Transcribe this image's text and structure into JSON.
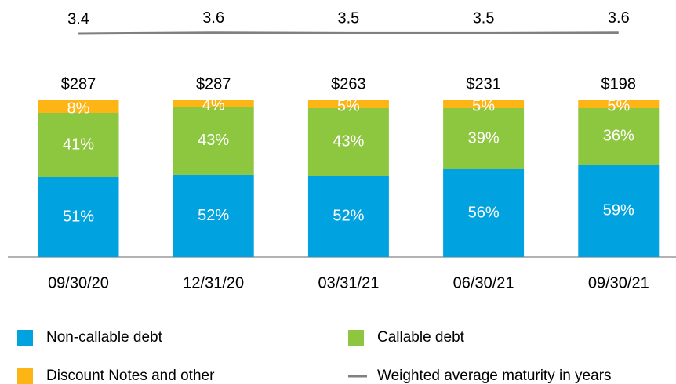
{
  "chart_data": {
    "type": "stacked_bar",
    "categories": [
      "09/30/20",
      "12/31/20",
      "03/31/21",
      "06/30/21",
      "09/30/21"
    ],
    "series": [
      {
        "name": "Non-callable debt",
        "color": "#00a3e0",
        "values": [
          51,
          52,
          52,
          56,
          59
        ],
        "value_labels": [
          "51%",
          "52%",
          "52%",
          "56%",
          "59%"
        ]
      },
      {
        "name": "Callable debt",
        "color": "#8dc63f",
        "values": [
          41,
          43,
          43,
          39,
          36
        ],
        "value_labels": [
          "41%",
          "43%",
          "43%",
          "39%",
          "36%"
        ]
      },
      {
        "name": "Discount Notes and other",
        "color": "#fdb515",
        "values": [
          8,
          4,
          5,
          5,
          5
        ],
        "value_labels": [
          "8%",
          "4%",
          "5%",
          "5%",
          "5%"
        ]
      }
    ],
    "totals": {
      "values": [
        287,
        287,
        263,
        231,
        198
      ],
      "value_labels": [
        "$287",
        "$287",
        "$263",
        "$231",
        "$198"
      ]
    },
    "line": {
      "name": "Weighted average maturity in years",
      "color": "#808080",
      "values": [
        3.4,
        3.6,
        3.5,
        3.5,
        3.6
      ]
    }
  }
}
